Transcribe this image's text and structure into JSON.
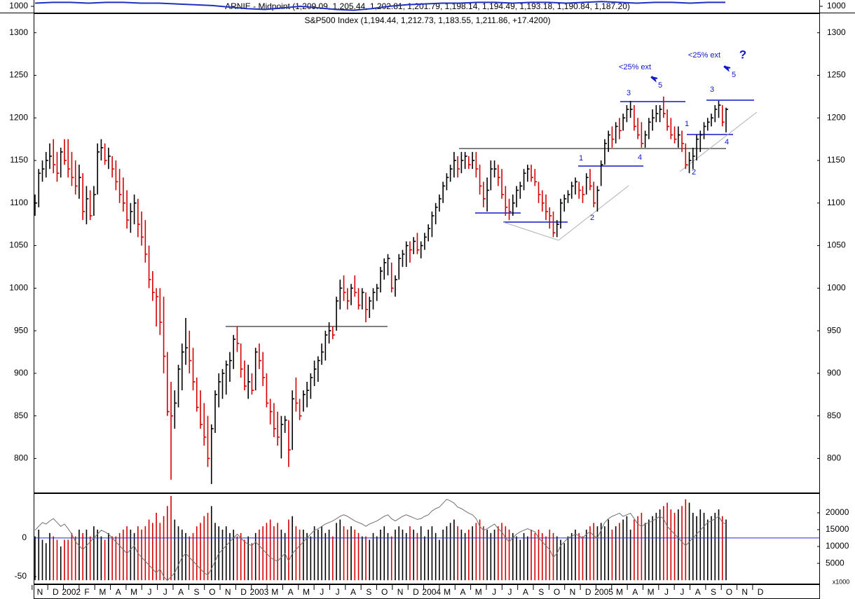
{
  "chart_data": [
    {
      "type": "line",
      "title": "ARNIE - Midpoint (1,209.09, 1,205.44, 1,202.81, 1,201.79, 1,198.14, 1,194.49, 1,193.18, 1,190.84, 1,187.20)",
      "values": [
        1004,
        1005,
        1005,
        1004,
        1005,
        1005,
        1004,
        1004,
        1003,
        1002,
        1001,
        999,
        997,
        996,
        998,
        1000,
        998,
        996,
        995,
        997,
        1000,
        1002,
        1003,
        1004,
        1004,
        1005,
        1005,
        1004,
        1005,
        1005,
        1004,
        1005,
        1006,
        1005,
        1004,
        1005,
        1005,
        1004,
        1005,
        1005
      ],
      "color": "#2030c0",
      "ylim": [
        992,
        1008
      ],
      "yticks": [
        1000
      ]
    },
    {
      "type": "ohlc",
      "title": "S&P500 Index (1,194.44, 1,212.73, 1,183.55, 1,211.86, +17.4200)",
      "up_color": "#000000",
      "down_color": "#d40000",
      "high": [
        1110,
        1140,
        1150,
        1160,
        1170,
        1175,
        1160,
        1165,
        1175,
        1175,
        1160,
        1150,
        1145,
        1135,
        1120,
        1115,
        1120,
        1170,
        1175,
        1170,
        1165,
        1155,
        1150,
        1140,
        1130,
        1115,
        1100,
        1110,
        1105,
        1090,
        1080,
        1050,
        1020,
        1000,
        1000,
        990,
        925,
        890,
        880,
        910,
        935,
        965,
        950,
        930,
        895,
        880,
        865,
        850,
        840,
        880,
        900,
        905,
        915,
        925,
        945,
        955,
        935,
        915,
        910,
        900,
        930,
        935,
        925,
        900,
        870,
        865,
        855,
        850,
        850,
        845,
        880,
        895,
        870,
        880,
        890,
        900,
        915,
        920,
        935,
        950,
        960,
        955,
        990,
        1010,
        1015,
        1000,
        1005,
        1015,
        1000,
        1000,
        995,
        990,
        1000,
        1005,
        1025,
        1035,
        1040,
        1030,
        1015,
        1040,
        1045,
        1055,
        1055,
        1060,
        1065,
        1055,
        1065,
        1075,
        1090,
        1100,
        1110,
        1125,
        1135,
        1145,
        1160,
        1155,
        1160,
        1160,
        1155,
        1160,
        1160,
        1145,
        1125,
        1130,
        1150,
        1150,
        1145,
        1140,
        1120,
        1105,
        1110,
        1120,
        1125,
        1140,
        1145,
        1145,
        1140,
        1125,
        1115,
        1110,
        1095,
        1090,
        1080,
        1105,
        1110,
        1115,
        1125,
        1130,
        1125,
        1120,
        1135,
        1140,
        1125,
        1120,
        1150,
        1175,
        1185,
        1190,
        1195,
        1200,
        1205,
        1215,
        1220,
        1215,
        1200,
        1195,
        1185,
        1200,
        1210,
        1215,
        1215,
        1225,
        1210,
        1200,
        1190,
        1190,
        1185,
        1170,
        1160,
        1165,
        1180,
        1185,
        1195,
        1200,
        1205,
        1215,
        1220,
        1215,
        1212
      ],
      "low": [
        1085,
        1095,
        1125,
        1130,
        1140,
        1135,
        1125,
        1130,
        1145,
        1130,
        1120,
        1110,
        1105,
        1080,
        1075,
        1080,
        1085,
        1110,
        1150,
        1145,
        1140,
        1130,
        1115,
        1100,
        1090,
        1070,
        1065,
        1075,
        1060,
        1050,
        1030,
        1000,
        985,
        955,
        945,
        900,
        850,
        775,
        835,
        860,
        880,
        910,
        900,
        880,
        855,
        835,
        815,
        790,
        770,
        830,
        860,
        870,
        875,
        890,
        905,
        925,
        895,
        880,
        870,
        875,
        880,
        905,
        885,
        860,
        840,
        825,
        815,
        800,
        830,
        790,
        810,
        855,
        845,
        855,
        860,
        870,
        885,
        890,
        910,
        915,
        935,
        940,
        950,
        975,
        985,
        975,
        980,
        990,
        975,
        975,
        960,
        965,
        975,
        985,
        995,
        1010,
        1015,
        995,
        990,
        1010,
        1025,
        1025,
        1030,
        1040,
        1040,
        1035,
        1045,
        1055,
        1060,
        1075,
        1090,
        1100,
        1115,
        1125,
        1130,
        1130,
        1135,
        1140,
        1140,
        1140,
        1130,
        1110,
        1095,
        1090,
        1115,
        1130,
        1120,
        1105,
        1085,
        1080,
        1085,
        1095,
        1105,
        1115,
        1125,
        1125,
        1120,
        1100,
        1090,
        1080,
        1070,
        1060,
        1060,
        1070,
        1090,
        1100,
        1105,
        1110,
        1105,
        1100,
        1110,
        1115,
        1095,
        1090,
        1120,
        1145,
        1160,
        1165,
        1170,
        1175,
        1185,
        1195,
        1200,
        1185,
        1175,
        1165,
        1165,
        1175,
        1185,
        1195,
        1195,
        1200,
        1185,
        1175,
        1170,
        1165,
        1160,
        1140,
        1135,
        1140,
        1150,
        1160,
        1175,
        1185,
        1190,
        1195,
        1200,
        1190,
        1183
      ],
      "close": [
        1100,
        1135,
        1140,
        1150,
        1155,
        1145,
        1135,
        1160,
        1150,
        1140,
        1130,
        1120,
        1130,
        1090,
        1105,
        1085,
        1110,
        1160,
        1165,
        1150,
        1155,
        1140,
        1125,
        1110,
        1100,
        1080,
        1090,
        1100,
        1075,
        1060,
        1040,
        1010,
        995,
        990,
        960,
        920,
        855,
        850,
        865,
        905,
        925,
        930,
        915,
        890,
        860,
        840,
        825,
        800,
        835,
        875,
        890,
        900,
        910,
        915,
        940,
        935,
        905,
        885,
        890,
        880,
        925,
        915,
        895,
        865,
        855,
        835,
        825,
        840,
        845,
        810,
        870,
        865,
        850,
        875,
        880,
        895,
        905,
        915,
        925,
        945,
        950,
        945,
        985,
        1000,
        995,
        985,
        1000,
        995,
        980,
        995,
        975,
        985,
        995,
        1000,
        1020,
        1030,
        1035,
        1000,
        1010,
        1035,
        1040,
        1050,
        1045,
        1055,
        1045,
        1050,
        1060,
        1070,
        1085,
        1095,
        1105,
        1120,
        1130,
        1140,
        1150,
        1140,
        1150,
        1155,
        1145,
        1150,
        1140,
        1120,
        1105,
        1115,
        1140,
        1140,
        1130,
        1110,
        1095,
        1090,
        1100,
        1115,
        1120,
        1135,
        1140,
        1130,
        1125,
        1110,
        1100,
        1090,
        1085,
        1065,
        1075,
        1100,
        1105,
        1110,
        1120,
        1125,
        1115,
        1110,
        1130,
        1120,
        1100,
        1115,
        1145,
        1170,
        1180,
        1175,
        1190,
        1185,
        1200,
        1210,
        1210,
        1190,
        1180,
        1170,
        1180,
        1195,
        1200,
        1205,
        1210,
        1205,
        1190,
        1180,
        1175,
        1180,
        1170,
        1145,
        1150,
        1155,
        1175,
        1180,
        1190,
        1195,
        1200,
        1210,
        1215,
        1195,
        1210
      ],
      "ylim": [
        760,
        1322
      ],
      "yticks": [
        800,
        850,
        900,
        950,
        1000,
        1050,
        1100,
        1150,
        1200,
        1250,
        1300
      ],
      "annotation_color": "#1018c8",
      "annotations": [
        "<25% ext",
        "5",
        "3",
        "4",
        "1",
        "2",
        "<25% ext",
        "?",
        "5",
        "3",
        "1",
        "4",
        "2"
      ]
    },
    {
      "type": "bar",
      "categories": [
        "N",
        "D",
        "2002",
        "F",
        "M",
        "A",
        "M",
        "J",
        "J",
        "A",
        "S",
        "O",
        "N",
        "D",
        "2003",
        "M",
        "A",
        "M",
        "J",
        "J",
        "A",
        "S",
        "O",
        "N",
        "D",
        "2004",
        "M",
        "A",
        "M",
        "J",
        "J",
        "A",
        "S",
        "O",
        "N",
        "D",
        "2005",
        "M",
        "A",
        "M",
        "J",
        "J",
        "A",
        "S",
        "O",
        "N",
        "D"
      ],
      "volume": [
        13000,
        15000,
        12000,
        11000,
        14000,
        13000,
        12000,
        10000,
        12000,
        12000,
        14000,
        13000,
        15000,
        14000,
        15000,
        13000,
        16000,
        15000,
        13000,
        12000,
        14000,
        13000,
        13000,
        14000,
        15000,
        16000,
        15000,
        14000,
        16000,
        15000,
        16000,
        18000,
        17000,
        20000,
        17000,
        19000,
        22000,
        25000,
        18000,
        16000,
        15000,
        14000,
        13000,
        14000,
        16000,
        17000,
        19000,
        20000,
        22000,
        17000,
        16000,
        15000,
        16000,
        14000,
        15000,
        13000,
        14000,
        12000,
        13000,
        11000,
        14000,
        15000,
        16000,
        17000,
        18000,
        16000,
        17000,
        15000,
        14000,
        18000,
        19000,
        16000,
        15000,
        15000,
        14000,
        13000,
        16000,
        15000,
        16000,
        14000,
        15000,
        13000,
        17000,
        18000,
        16000,
        15000,
        16000,
        15000,
        14000,
        13000,
        13000,
        12000,
        14000,
        13000,
        15000,
        16000,
        14000,
        13000,
        15000,
        16000,
        15000,
        14000,
        16000,
        15000,
        14000,
        16000,
        13000,
        15000,
        16000,
        14000,
        12000,
        15000,
        16000,
        17000,
        18000,
        16000,
        15000,
        14000,
        15000,
        16000,
        17000,
        18000,
        16000,
        15000,
        14000,
        15000,
        16000,
        17000,
        16000,
        15000,
        14000,
        13000,
        12000,
        14000,
        13000,
        15000,
        14000,
        15000,
        14000,
        13000,
        15000,
        14000,
        13000,
        12000,
        11000,
        13000,
        14000,
        15000,
        14000,
        13000,
        15000,
        16000,
        17000,
        16000,
        17000,
        16000,
        18000,
        15000,
        16000,
        17000,
        18000,
        19000,
        15000,
        18000,
        19000,
        20000,
        17000,
        18000,
        19000,
        20000,
        21000,
        22000,
        23000,
        21000,
        20000,
        21000,
        22000,
        24000,
        23000,
        20000,
        19000,
        21000,
        20000,
        18000,
        19000,
        20000,
        21000,
        19000,
        18000
      ],
      "oscillator": [
        10,
        15,
        20,
        18,
        22,
        25,
        20,
        15,
        18,
        12,
        5,
        -5,
        -10,
        -15,
        -10,
        -5,
        0,
        5,
        10,
        8,
        5,
        0,
        -5,
        -10,
        -15,
        -20,
        -15,
        -10,
        -20,
        -25,
        -30,
        -35,
        -40,
        -45,
        -40,
        -50,
        -55,
        -50,
        -45,
        -35,
        -25,
        -20,
        -25,
        -30,
        -35,
        -40,
        -45,
        -48,
        -40,
        -30,
        -20,
        -15,
        -10,
        -5,
        0,
        5,
        0,
        -5,
        -8,
        -10,
        -5,
        -10,
        -15,
        -20,
        -25,
        -28,
        -30,
        -25,
        -20,
        -30,
        -20,
        -15,
        -10,
        -5,
        0,
        5,
        10,
        12,
        15,
        18,
        20,
        22,
        25,
        28,
        30,
        28,
        25,
        22,
        20,
        18,
        15,
        18,
        20,
        22,
        25,
        28,
        30,
        25,
        22,
        25,
        28,
        30,
        28,
        26,
        24,
        25,
        28,
        30,
        35,
        38,
        40,
        45,
        50,
        48,
        45,
        40,
        38,
        35,
        32,
        30,
        25,
        15,
        10,
        12,
        15,
        18,
        12,
        8,
        0,
        -5,
        0,
        5,
        8,
        10,
        12,
        10,
        8,
        0,
        -5,
        -10,
        -15,
        -25,
        -20,
        -10,
        -5,
        0,
        2,
        5,
        3,
        0,
        5,
        8,
        3,
        0,
        10,
        20,
        25,
        28,
        30,
        32,
        28,
        30,
        32,
        25,
        18,
        15,
        18,
        20,
        22,
        25,
        28,
        25,
        15,
        10,
        5,
        0,
        -5,
        -10,
        -5,
        0,
        5,
        10,
        15,
        20,
        22,
        25,
        28,
        20,
        18
      ],
      "oscillator_color": "#707070",
      "zero_line_color": "#2030c0",
      "ylim": [
        -59,
        57
      ],
      "yticks": [
        0,
        -50
      ],
      "y2lim": [
        -1000,
        25600
      ],
      "y2ticks": [
        20000,
        15000,
        10000,
        5000
      ],
      "y2_scale_label": "x1000"
    }
  ]
}
